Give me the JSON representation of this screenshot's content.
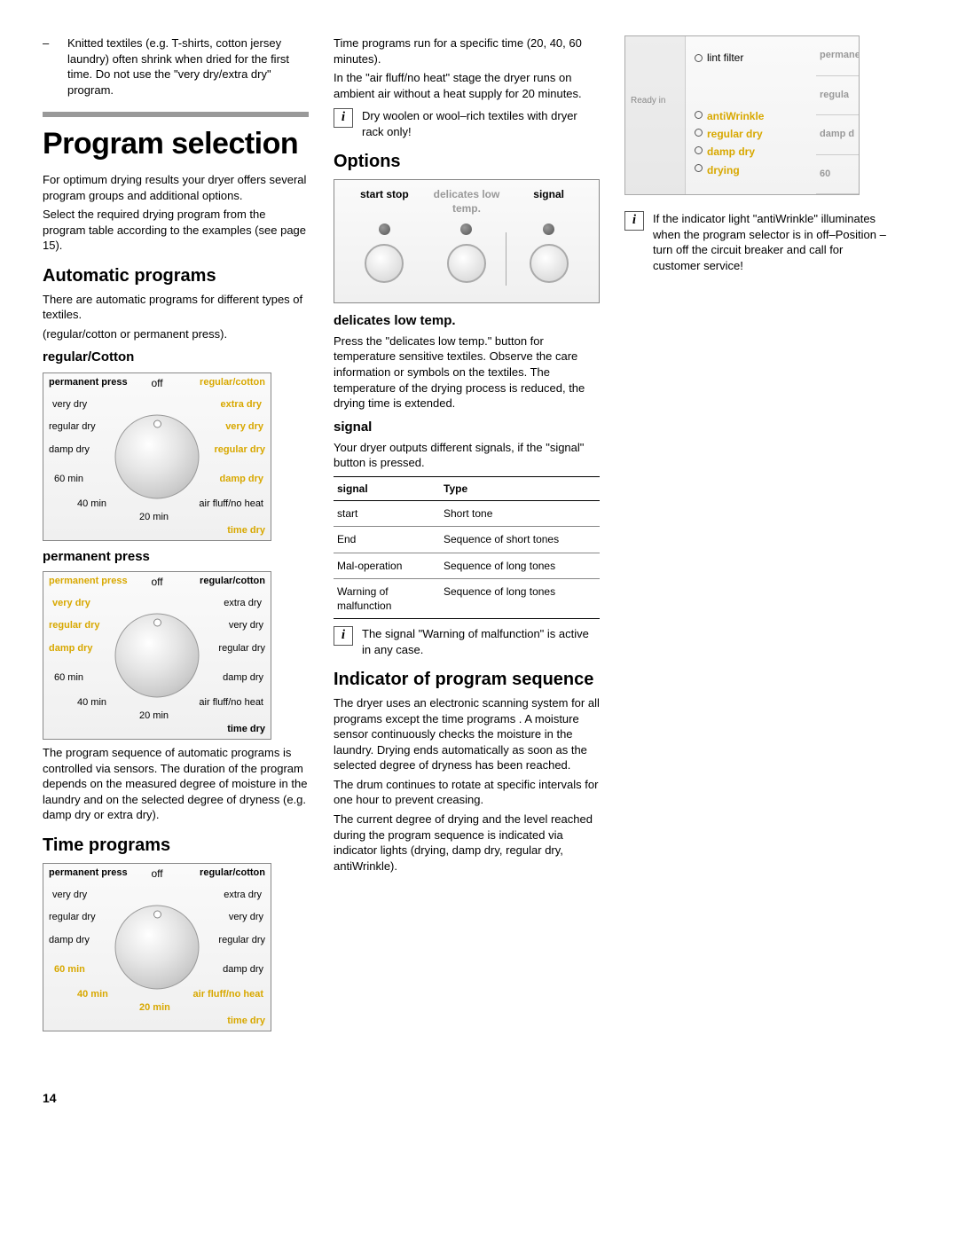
{
  "col1": {
    "bullet_dash": "–",
    "bullet_text": "Knitted textiles (e.g. T-shirts, cotton jersey laundry) often shrink when dried for the first time. Do not use the \"very dry/extra dry\" program.",
    "h1": "Program selection",
    "intro1": "For optimum drying results your dryer offers several program groups and additional options.",
    "intro2": "Select the required drying program from the program table according to the examples (see page 15).",
    "h2_auto": "Automatic programs",
    "auto_p1": "There are automatic programs for different types of textiles.",
    "auto_p2": "(regular/cotton or permanent press).",
    "h3_reg": "regular/Cotton",
    "h3_perm": "permanent press",
    "auto_after": "The program sequence of automatic programs is controlled via sensors. The duration of the program depends on the measured degree of moisture in the laundry and on the selected degree of dryness (e.g. damp dry or extra dry).",
    "h2_time": "Time programs",
    "dial": {
      "tl": "permanent press",
      "tc": "off",
      "tr": "regular/cotton",
      "br": "time dry",
      "labels": {
        "very_dry_l": "very dry",
        "regular_dry_l": "regular dry",
        "damp_dry_l": "damp dry",
        "sixty": "60 min",
        "forty": "40 min",
        "twenty": "20 min",
        "air_fluff": "air fluff/no heat",
        "damp_dry_r": "damp dry",
        "regular_dry_r": "regular dry",
        "very_dry_r": "very dry",
        "extra_dry": "extra dry"
      }
    }
  },
  "col2": {
    "time_p1": "Time programs run for a specific time (20, 40, 60 minutes).",
    "time_p2": "In the \"air fluff/no heat\" stage the dryer runs on ambient air without a heat supply for 20 minutes.",
    "info_wool": "Dry woolen or wool–rich textiles with dryer rack only!",
    "h2_options": "Options",
    "opt": {
      "h1": "start stop",
      "h2": "delicates low temp.",
      "h3": "signal"
    },
    "h3_delicates": "delicates low temp.",
    "delicates_p": "Press the \"delicates low temp.\" button for temperature sensitive textiles. Observe the care information or symbols on the textiles. The temperature of the drying process is reduced, the drying time is extended.",
    "h3_signal": "signal",
    "signal_p": "Your dryer outputs different signals, if the \"signal\" button is pressed.",
    "sig_table": {
      "h_signal": "signal",
      "h_type": "Type",
      "rows": [
        [
          "start",
          "Short tone"
        ],
        [
          "End",
          "Sequence of short tones"
        ],
        [
          "Mal-operation",
          "Sequence of long tones"
        ],
        [
          "Warning of malfunction",
          "Sequence of long tones"
        ]
      ]
    },
    "info_signal": "The signal \"Warning of malfunction\" is active in any case.",
    "h2_indicator": "Indicator of program sequence",
    "ind_p1": "The dryer uses an electronic scanning system for all programs except the time programs . A moisture sensor continuously checks the moisture in the laundry. Drying ends automatically as soon as the selected degree of dryness has been reached.",
    "ind_p2": "The drum continues to rotate at specific intervals for one hour to prevent creasing.",
    "ind_p3": "The current degree of drying and the level reached during the program sequence is indicated via indicator lights (drying, damp dry, regular dry, antiWrinkle)."
  },
  "col3": {
    "panel": {
      "ready_in": "Ready in",
      "lint": "lint filter",
      "right": [
        "permane",
        "regula",
        "damp d",
        "60"
      ],
      "list": [
        "antiWrinkle",
        "regular dry",
        "damp dry",
        "drying"
      ]
    },
    "info_indicator": "If the indicator light \"antiWrinkle\" illuminates when the program selector is in off–Position – turn off the circuit breaker and call for customer service!"
  },
  "page_num": "14",
  "info_i": "i"
}
